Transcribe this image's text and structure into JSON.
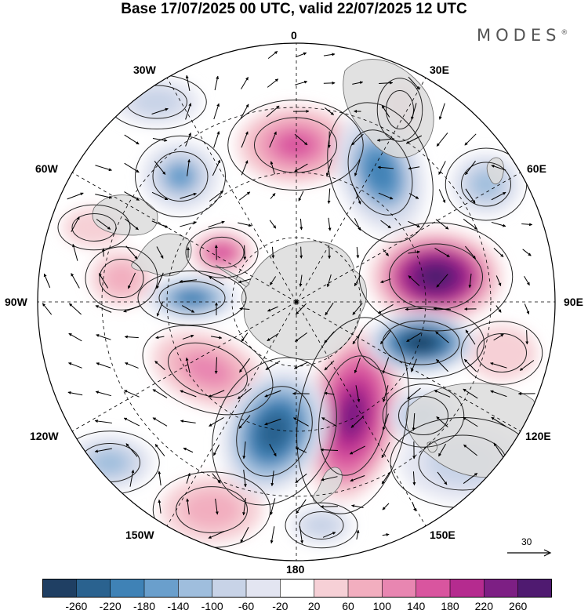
{
  "title": "Base 17/07/2025 00 UTC, valid 22/07/2025 12 UTC",
  "brand": "MODES",
  "brand_mark": "®",
  "longitude_labels": {
    "n0": "0",
    "n30e": "30E",
    "n60e": "60E",
    "n90e": "90E",
    "n120e": "120E",
    "n150e": "150E",
    "n180": "180",
    "n150w": "150W",
    "n120w": "120W",
    "n90w": "90W",
    "n60w": "60W",
    "n30w": "30W"
  },
  "colorbar": {
    "ticks": [
      "-260",
      "-220",
      "-180",
      "-140",
      "-100",
      "-60",
      "-20",
      "20",
      "60",
      "100",
      "140",
      "180",
      "220",
      "260"
    ],
    "colors": [
      "#1f3f63",
      "#2a628f",
      "#3f82b6",
      "#6a9fcc",
      "#9fbedd",
      "#c8d3e7",
      "#e3e5f1",
      "#ffffff",
      "#f6d0d6",
      "#f2aebf",
      "#e886b1",
      "#d9559f",
      "#b52b8f",
      "#7d1f84",
      "#4f1a70"
    ]
  },
  "reference_vector": {
    "value": "30"
  },
  "colors": {
    "land": "#dcdcdc",
    "coast": "#666666",
    "grid": "#000000"
  }
}
